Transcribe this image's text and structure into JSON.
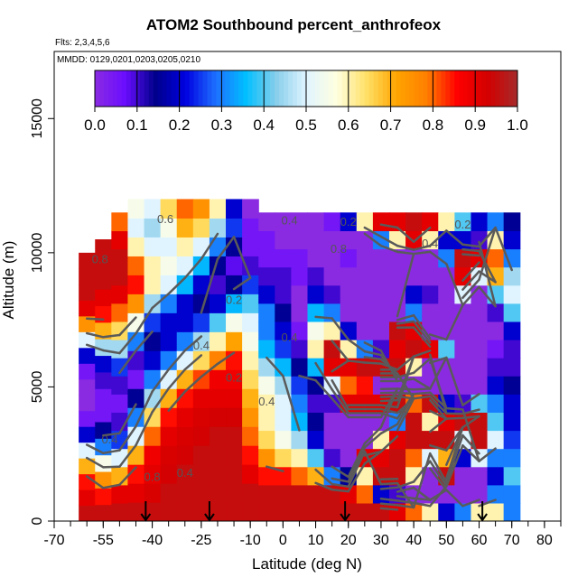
{
  "chart_data": {
    "type": "heatmap",
    "title": "ATOM2 Southbound percent_anthrofeox",
    "subtitle_flights": "Flts: 2,3,4,5,6",
    "subtitle_dates": "MMDD: 0129,0201,0203,0205,0210",
    "xlabel": "Latitude (deg N)",
    "ylabel": "Altitude (m)",
    "xlim": [
      -70,
      85
    ],
    "ylim": [
      0,
      17500
    ],
    "x_ticks": [
      -70,
      -55,
      -40,
      -25,
      -10,
      0,
      10,
      20,
      30,
      40,
      50,
      60,
      70,
      80
    ],
    "x_tick_labels": [
      "-70",
      "-55",
      "-40",
      "-25",
      "-10",
      "0",
      "10",
      "20",
      "30",
      "40",
      "50",
      "60",
      "70",
      "80"
    ],
    "y_ticks": [
      0,
      5000,
      10000,
      15000
    ],
    "y_tick_labels": [
      "0",
      "5000",
      "10000",
      "15000"
    ],
    "colorbar": {
      "range": [
        0,
        1
      ],
      "ticks": [
        0.0,
        0.1,
        0.2,
        0.3,
        0.4,
        0.5,
        0.6,
        0.7,
        0.8,
        0.9,
        1.0
      ],
      "tick_labels": [
        "0.0",
        "0.1",
        "0.2",
        "0.3",
        "0.4",
        "0.5",
        "0.6",
        "0.7",
        "0.8",
        "0.9",
        "1.0"
      ],
      "colors": [
        "#8a2be2",
        "#6a0dff",
        "#00008b",
        "#0000e0",
        "#1e6fff",
        "#00bfff",
        "#87ceeb",
        "#e0f4ff",
        "#ffffe0",
        "#ffe066",
        "#ffa500",
        "#ff7f00",
        "#ff0000",
        "#d40000",
        "#a52a2a"
      ]
    },
    "contour_labels": [
      "0.2",
      "0.4",
      "0.6",
      "0.8"
    ],
    "arrow_latitudes": [
      -42,
      -22.5,
      19,
      61
    ],
    "profiles": [
      {
        "latitude": -60,
        "top": 10000,
        "values": [
          0.95,
          0.9,
          0.85,
          0.7,
          0.5,
          0.2,
          0.05,
          0.0,
          0.0,
          0.05,
          0.2,
          0.5,
          0.75,
          0.9,
          0.95,
          0.95,
          0.95
        ]
      },
      {
        "latitude": -55,
        "top": 10500,
        "values": [
          0.95,
          0.85,
          0.75,
          0.55,
          0.3,
          0.15,
          0.05,
          0.05,
          0.1,
          0.2,
          0.45,
          0.7,
          0.85,
          0.9,
          0.95,
          0.95,
          0.95
        ]
      },
      {
        "latitude": -50,
        "top": 11500,
        "values": [
          0.95,
          0.9,
          0.7,
          0.5,
          0.25,
          0.1,
          0.05,
          0.1,
          0.25,
          0.45,
          0.65,
          0.8,
          0.9,
          0.95,
          0.95,
          0.9,
          0.8
        ]
      },
      {
        "latitude": -45,
        "top": 12000,
        "values": [
          0.95,
          0.9,
          0.85,
          0.7,
          0.5,
          0.3,
          0.15,
          0.05,
          0.1,
          0.3,
          0.55,
          0.75,
          0.85,
          0.8,
          0.6,
          0.5,
          0.55
        ]
      },
      {
        "latitude": -40,
        "top": 12000,
        "values": [
          0.95,
          0.92,
          0.9,
          0.88,
          0.8,
          0.65,
          0.45,
          0.3,
          0.2,
          0.15,
          0.25,
          0.45,
          0.6,
          0.6,
          0.5,
          0.45,
          0.5
        ]
      },
      {
        "latitude": -35,
        "top": 12000,
        "values": [
          0.95,
          0.95,
          0.93,
          0.92,
          0.9,
          0.85,
          0.7,
          0.5,
          0.3,
          0.2,
          0.2,
          0.3,
          0.5,
          0.55,
          0.5,
          0.55,
          0.65
        ]
      },
      {
        "latitude": -30,
        "top": 12000,
        "values": [
          0.95,
          0.95,
          0.95,
          0.93,
          0.92,
          0.9,
          0.85,
          0.7,
          0.5,
          0.3,
          0.2,
          0.2,
          0.35,
          0.5,
          0.6,
          0.7,
          0.8
        ]
      },
      {
        "latitude": -25,
        "top": 12000,
        "values": [
          0.95,
          0.95,
          0.95,
          0.95,
          0.93,
          0.92,
          0.9,
          0.82,
          0.65,
          0.45,
          0.25,
          0.15,
          0.2,
          0.35,
          0.5,
          0.65,
          0.75
        ]
      },
      {
        "latitude": -20,
        "top": 12000,
        "values": [
          0.95,
          0.95,
          0.95,
          0.95,
          0.95,
          0.93,
          0.9,
          0.88,
          0.78,
          0.6,
          0.4,
          0.2,
          0.1,
          0.15,
          0.3,
          0.45,
          0.6
        ]
      },
      {
        "latitude": -15,
        "top": 12000,
        "values": [
          0.95,
          0.95,
          0.95,
          0.95,
          0.95,
          0.93,
          0.9,
          0.88,
          0.85,
          0.72,
          0.55,
          0.35,
          0.15,
          0.08,
          0.15,
          0.25,
          0.2
        ]
      },
      {
        "latitude": -10,
        "top": 12000,
        "values": [
          0.95,
          0.95,
          0.9,
          0.85,
          0.8,
          0.75,
          0.7,
          0.65,
          0.6,
          0.55,
          0.5,
          0.4,
          0.25,
          0.1,
          0.05,
          0.05,
          0.0
        ]
      },
      {
        "latitude": -5,
        "top": 11500,
        "values": [
          0.95,
          0.95,
          0.85,
          0.75,
          0.65,
          0.6,
          0.6,
          0.55,
          0.45,
          0.35,
          0.3,
          0.3,
          0.2,
          0.1,
          0.05,
          0.05,
          0.0
        ]
      },
      {
        "latitude": 0,
        "top": 11500,
        "values": [
          0.95,
          0.95,
          0.85,
          0.65,
          0.55,
          0.5,
          0.5,
          0.45,
          0.35,
          0.25,
          0.2,
          0.15,
          0.1,
          0.1,
          0.05,
          0.0,
          0.0
        ]
      },
      {
        "latitude": 5,
        "top": 11500,
        "values": [
          0.95,
          0.95,
          0.8,
          0.6,
          0.45,
          0.35,
          0.3,
          0.25,
          0.15,
          0.1,
          0.05,
          0.0,
          0.0,
          0.05,
          0.05,
          0.0,
          0.0
        ]
      },
      {
        "latitude": 10,
        "top": 11500,
        "values": [
          0.95,
          0.95,
          0.7,
          0.4,
          0.2,
          0.15,
          0.1,
          0.15,
          0.35,
          0.6,
          0.55,
          0.35,
          0.2,
          0.1,
          0.0,
          0.0,
          0.0
        ]
      },
      {
        "latitude": 15,
        "top": 11500,
        "values": [
          0.95,
          0.95,
          0.3,
          0.1,
          0.0,
          0.0,
          0.1,
          0.5,
          0.9,
          0.95,
          0.6,
          0.3,
          0.1,
          0.0,
          0.0,
          0.0,
          0.05
        ]
      },
      {
        "latitude": 20,
        "top": 11500,
        "values": [
          0.95,
          0.9,
          0.15,
          0.0,
          0.0,
          0.0,
          0.9,
          0.8,
          0.9,
          0.6,
          0.2,
          0.0,
          0.0,
          0.0,
          0.05,
          0.0,
          0.2
        ]
      },
      {
        "latitude": 25,
        "top": 11500,
        "values": [
          0.95,
          0.8,
          0.6,
          0.9,
          0.0,
          0.0,
          0.9,
          0.85,
          0.95,
          0.3,
          0.0,
          0.0,
          0.0,
          0.0,
          0.0,
          0.0,
          0.6
        ]
      },
      {
        "latitude": 30,
        "top": 11500,
        "values": [
          0.95,
          0.2,
          0.95,
          0.9,
          0.6,
          0.0,
          0.9,
          0.0,
          0.95,
          0.1,
          0.0,
          0.0,
          0.0,
          0.0,
          0.0,
          0.3,
          0.9
        ]
      },
      {
        "latitude": 35,
        "top": 11500,
        "values": [
          0.9,
          0.1,
          0.95,
          0.95,
          0.9,
          0.3,
          0.95,
          0.0,
          0.95,
          0.9,
          0.95,
          0.0,
          0.0,
          0.0,
          0.0,
          0.6,
          0.9
        ]
      },
      {
        "latitude": 40,
        "top": 11500,
        "values": [
          0.8,
          0.0,
          0.6,
          0.8,
          0.95,
          0.95,
          0.8,
          0.0,
          0.6,
          0.95,
          0.9,
          0.3,
          0.2,
          0.0,
          0.0,
          0.9,
          0.95
        ]
      },
      {
        "latitude": 45,
        "top": 11500,
        "values": [
          0.6,
          0.0,
          0.0,
          0.5,
          0.95,
          0.6,
          0.95,
          0.0,
          0.0,
          0.9,
          0.0,
          0.0,
          0.1,
          0.0,
          0.0,
          0.6,
          0.9
        ]
      },
      {
        "latitude": 50,
        "top": 11500,
        "values": [
          0.2,
          0.0,
          0.95,
          0.7,
          0.95,
          0.9,
          0.2,
          0.0,
          0.0,
          0.4,
          0.0,
          0.0,
          0.0,
          0.0,
          0.3,
          0.2,
          0.6
        ]
      },
      {
        "latitude": 55,
        "top": 11500,
        "values": [
          0.3,
          0.0,
          0.0,
          0.2,
          0.5,
          0.95,
          0.1,
          0.0,
          0.0,
          0.0,
          0.0,
          0.0,
          0.5,
          0.9,
          0.95,
          0.2,
          0.4
        ]
      },
      {
        "latitude": 60,
        "top": 11500,
        "values": [
          0.6,
          0.0,
          0.0,
          0.5,
          0.95,
          0.95,
          0.4,
          0.0,
          0.0,
          0.0,
          0.0,
          0.0,
          0.0,
          0.5,
          0.9,
          0.1,
          0.2
        ]
      },
      {
        "latitude": 65,
        "top": 11500,
        "values": [
          0.6,
          0.3,
          0.2,
          0.3,
          0.5,
          0.4,
          0.3,
          0.2,
          0.1,
          0.05,
          0.0,
          0.1,
          0.4,
          0.7,
          0.8,
          0.6,
          0.3
        ]
      },
      {
        "latitude": 70,
        "top": 11500,
        "values": [
          0.3,
          0.3,
          0.4,
          0.3,
          0.25,
          0.2,
          0.2,
          0.15,
          0.1,
          0.1,
          0.2,
          0.4,
          0.5,
          0.45,
          0.3,
          0.2,
          0.15
        ]
      }
    ]
  }
}
